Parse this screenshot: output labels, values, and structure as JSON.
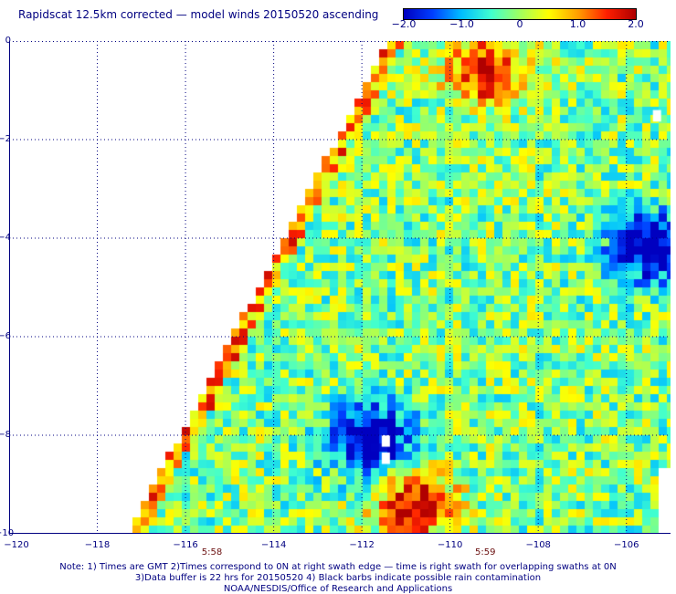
{
  "title": "Rapidscat 12.5km corrected — model winds 20150520 ascending",
  "colorbar": {
    "min": -2.0,
    "max": 2.0,
    "ticks": [
      "−2.0",
      "−1.0",
      "0",
      "1.0",
      "2.0"
    ],
    "colors": [
      "#0000c0",
      "#0040ff",
      "#00c0ff",
      "#40ffd0",
      "#a0ff60",
      "#ffff00",
      "#ffa000",
      "#ff2000",
      "#b00000"
    ]
  },
  "map": {
    "lat_range": [
      -10,
      0
    ],
    "lon_range": [
      -120,
      -105
    ],
    "y_ticks": [
      "0",
      "−2",
      "−4",
      "−6",
      "−8",
      "−10"
    ],
    "x_ticks": [
      "−120",
      "−118",
      "−116",
      "−114",
      "−112",
      "−110",
      "−108",
      "−106"
    ],
    "time_labels": [
      {
        "text": "5:58",
        "lon": -115.4
      },
      {
        "text": "5:59",
        "lon": -109.2
      }
    ],
    "gridline_color": "#000080",
    "swath_edge": [
      [
        -111.4,
        0
      ],
      [
        -117.3,
        -10
      ]
    ],
    "features": [
      {
        "label": "strong negative core",
        "lon": -111.8,
        "lat": -8.1,
        "value": -2.0
      },
      {
        "label": "negative area east",
        "lon": -105.5,
        "lat": -4.2,
        "value": -1.8
      },
      {
        "label": "positive band north",
        "lon": -109.2,
        "lat": -0.6,
        "value": 1.6
      },
      {
        "label": "positive band south",
        "lon": -110.8,
        "lat": -9.4,
        "value": 1.7
      }
    ]
  },
  "notes": [
    "Note: 1) Times are GMT 2)Times correspond to 0N at right swath edge — time is right swath for overlapping swaths at 0N",
    "3)Data buffer is 22 hrs for 20150520 4) Black barbs indicate possible rain contamination",
    "NOAA/NESDIS/Office of Research and Applications"
  ]
}
